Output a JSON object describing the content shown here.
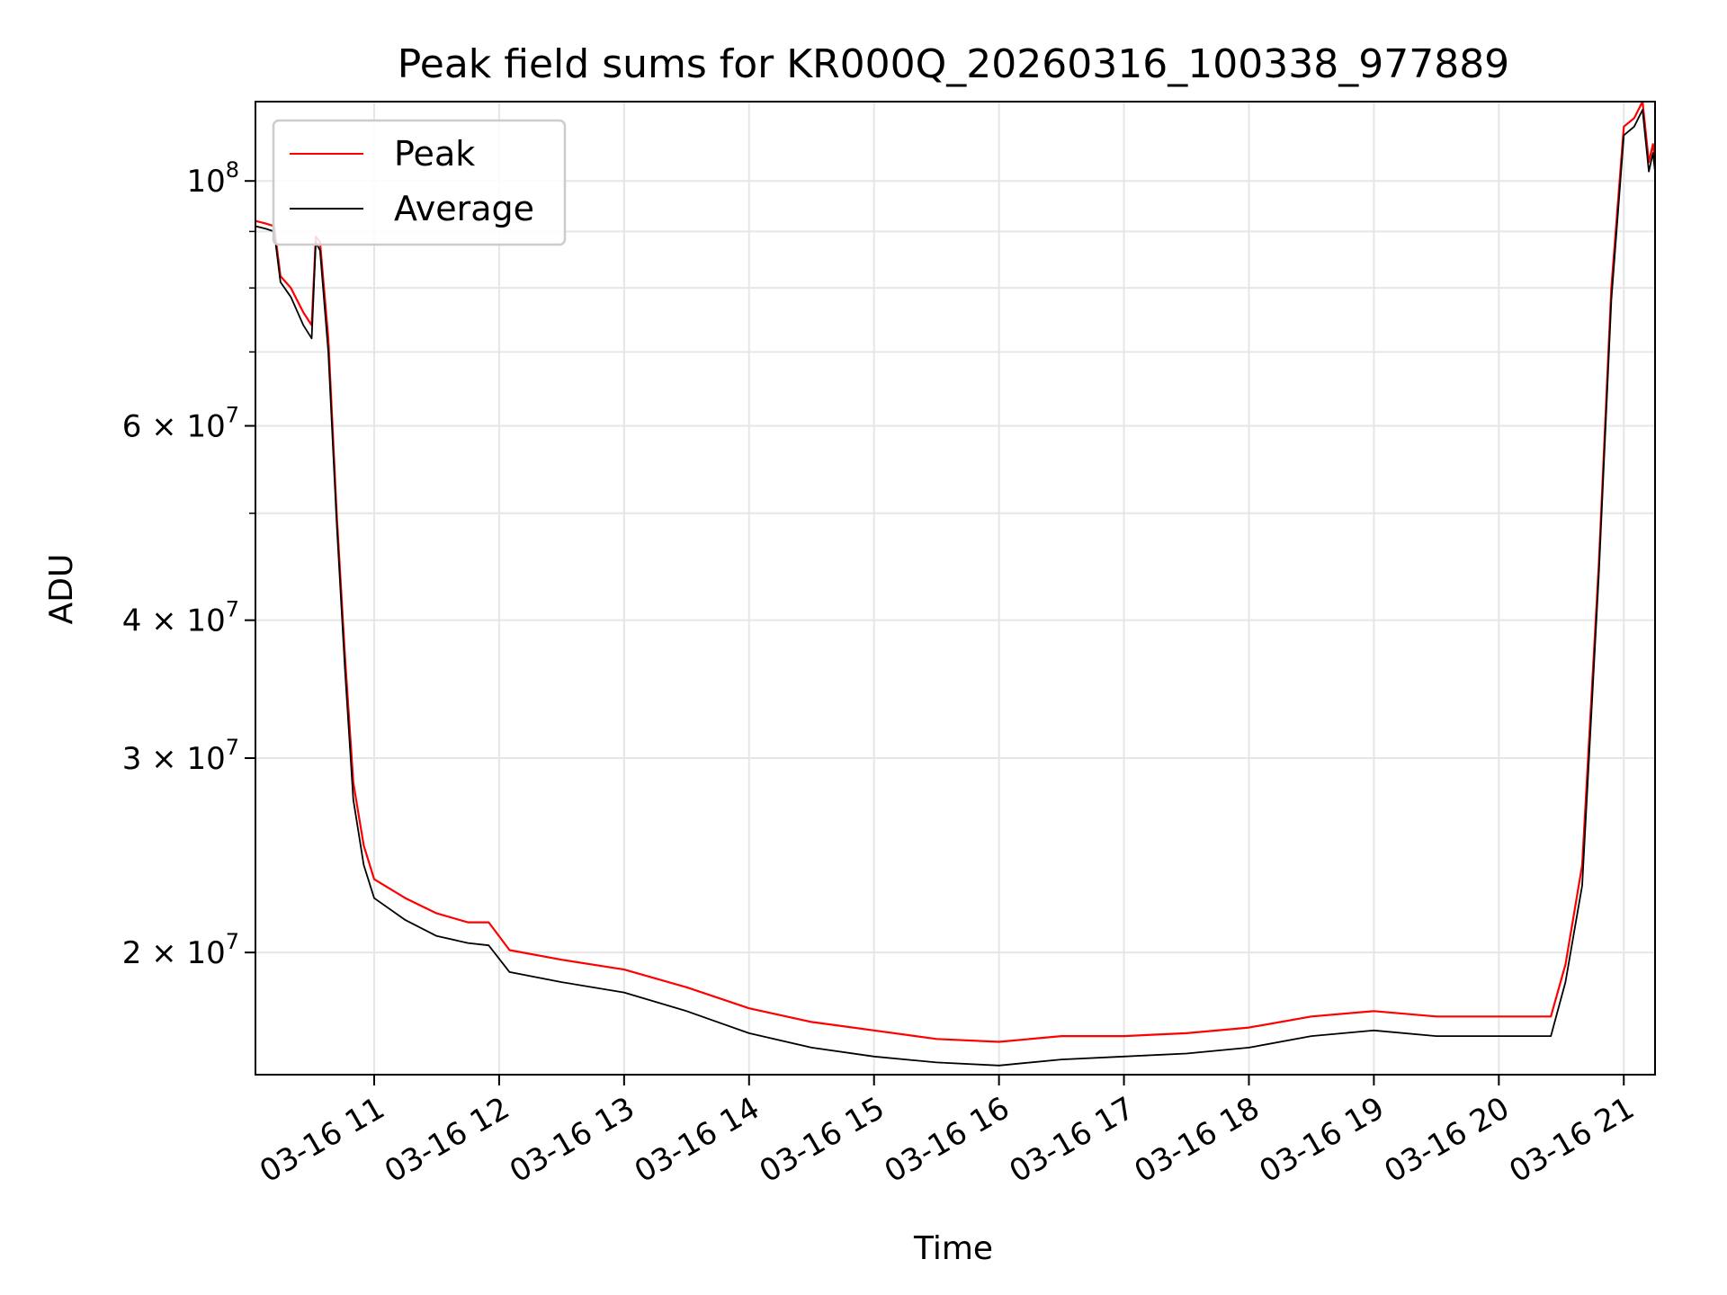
{
  "chart_data": {
    "type": "line",
    "title": "Peak field sums for KR000Q_20260316_100338_977889",
    "xlabel": "Time",
    "ylabel": "ADU",
    "yscale": "log",
    "xlim": [
      "2026-03-16 10:03",
      "2026-03-16 21:15"
    ],
    "ylim": [
      15500000,
      118000000
    ],
    "grid": true,
    "legend": "top-left",
    "x_ticks": [
      "03-16 11",
      "03-16 12",
      "03-16 13",
      "03-16 14",
      "03-16 15",
      "03-16 16",
      "03-16 17",
      "03-16 18",
      "03-16 19",
      "03-16 20",
      "03-16 21"
    ],
    "y_ticks": [
      {
        "value": 20000000,
        "mantissa": "2",
        "exponent": "7"
      },
      {
        "value": 30000000,
        "mantissa": "3",
        "exponent": "7"
      },
      {
        "value": 40000000,
        "mantissa": "4",
        "exponent": "7"
      },
      {
        "value": 60000000,
        "mantissa": "6",
        "exponent": "7"
      },
      {
        "value": 100000000,
        "mantissa": "",
        "exponent": "8"
      }
    ],
    "y_minor_ticks": [
      50000000,
      70000000,
      80000000,
      90000000
    ],
    "series": [
      {
        "name": "Peak",
        "color": "#ff0000",
        "points": [
          [
            "2026-03-16 10:03",
            92000000
          ],
          [
            "2026-03-16 10:08",
            91500000
          ],
          [
            "2026-03-16 10:12",
            91000000
          ],
          [
            "2026-03-16 10:15",
            82000000
          ],
          [
            "2026-03-16 10:20",
            80000000
          ],
          [
            "2026-03-16 10:26",
            76000000
          ],
          [
            "2026-03-16 10:30",
            74000000
          ],
          [
            "2026-03-16 10:32",
            89000000
          ],
          [
            "2026-03-16 10:34",
            88000000
          ],
          [
            "2026-03-16 10:38",
            72000000
          ],
          [
            "2026-03-16 10:42",
            50000000
          ],
          [
            "2026-03-16 10:46",
            37000000
          ],
          [
            "2026-03-16 10:50",
            28500000
          ],
          [
            "2026-03-16 10:55",
            25000000
          ],
          [
            "2026-03-16 11:00",
            23300000
          ],
          [
            "2026-03-16 11:15",
            22400000
          ],
          [
            "2026-03-16 11:30",
            21700000
          ],
          [
            "2026-03-16 11:45",
            21300000
          ],
          [
            "2026-03-16 11:55",
            21300000
          ],
          [
            "2026-03-16 12:05",
            20100000
          ],
          [
            "2026-03-16 12:30",
            19700000
          ],
          [
            "2026-03-16 13:00",
            19300000
          ],
          [
            "2026-03-16 13:30",
            18600000
          ],
          [
            "2026-03-16 14:00",
            17800000
          ],
          [
            "2026-03-16 14:30",
            17300000
          ],
          [
            "2026-03-16 15:00",
            17000000
          ],
          [
            "2026-03-16 15:30",
            16700000
          ],
          [
            "2026-03-16 16:00",
            16600000
          ],
          [
            "2026-03-16 16:30",
            16800000
          ],
          [
            "2026-03-16 17:00",
            16800000
          ],
          [
            "2026-03-16 17:30",
            16900000
          ],
          [
            "2026-03-16 18:00",
            17100000
          ],
          [
            "2026-03-16 18:30",
            17500000
          ],
          [
            "2026-03-16 19:00",
            17700000
          ],
          [
            "2026-03-16 19:30",
            17500000
          ],
          [
            "2026-03-16 20:00",
            17500000
          ],
          [
            "2026-03-16 20:25",
            17500000
          ],
          [
            "2026-03-16 20:32",
            19500000
          ],
          [
            "2026-03-16 20:40",
            24000000
          ],
          [
            "2026-03-16 20:48",
            45000000
          ],
          [
            "2026-03-16 20:54",
            80000000
          ],
          [
            "2026-03-16 21:00",
            112000000
          ],
          [
            "2026-03-16 21:05",
            114000000
          ],
          [
            "2026-03-16 21:09",
            118000000
          ],
          [
            "2026-03-16 21:12",
            104000000
          ],
          [
            "2026-03-16 21:14",
            108000000
          ],
          [
            "2026-03-16 21:15",
            104000000
          ]
        ]
      },
      {
        "name": "Average",
        "color": "#000000",
        "points": [
          [
            "2026-03-16 10:03",
            91000000
          ],
          [
            "2026-03-16 10:08",
            90500000
          ],
          [
            "2026-03-16 10:12",
            90000000
          ],
          [
            "2026-03-16 10:15",
            81000000
          ],
          [
            "2026-03-16 10:20",
            78500000
          ],
          [
            "2026-03-16 10:26",
            74000000
          ],
          [
            "2026-03-16 10:30",
            72000000
          ],
          [
            "2026-03-16 10:32",
            88000000
          ],
          [
            "2026-03-16 10:34",
            86500000
          ],
          [
            "2026-03-16 10:38",
            70000000
          ],
          [
            "2026-03-16 10:42",
            49000000
          ],
          [
            "2026-03-16 10:46",
            36000000
          ],
          [
            "2026-03-16 10:50",
            27500000
          ],
          [
            "2026-03-16 10:55",
            24000000
          ],
          [
            "2026-03-16 11:00",
            22400000
          ],
          [
            "2026-03-16 11:15",
            21400000
          ],
          [
            "2026-03-16 11:30",
            20700000
          ],
          [
            "2026-03-16 11:45",
            20400000
          ],
          [
            "2026-03-16 11:55",
            20300000
          ],
          [
            "2026-03-16 12:05",
            19200000
          ],
          [
            "2026-03-16 12:30",
            18800000
          ],
          [
            "2026-03-16 13:00",
            18400000
          ],
          [
            "2026-03-16 13:30",
            17700000
          ],
          [
            "2026-03-16 14:00",
            16900000
          ],
          [
            "2026-03-16 14:30",
            16400000
          ],
          [
            "2026-03-16 15:00",
            16100000
          ],
          [
            "2026-03-16 15:30",
            15900000
          ],
          [
            "2026-03-16 16:00",
            15800000
          ],
          [
            "2026-03-16 16:30",
            16000000
          ],
          [
            "2026-03-16 17:00",
            16100000
          ],
          [
            "2026-03-16 17:30",
            16200000
          ],
          [
            "2026-03-16 18:00",
            16400000
          ],
          [
            "2026-03-16 18:30",
            16800000
          ],
          [
            "2026-03-16 19:00",
            17000000
          ],
          [
            "2026-03-16 19:30",
            16800000
          ],
          [
            "2026-03-16 20:00",
            16800000
          ],
          [
            "2026-03-16 20:25",
            16800000
          ],
          [
            "2026-03-16 20:32",
            18800000
          ],
          [
            "2026-03-16 20:40",
            23000000
          ],
          [
            "2026-03-16 20:48",
            44000000
          ],
          [
            "2026-03-16 20:54",
            78000000
          ],
          [
            "2026-03-16 21:00",
            110000000
          ],
          [
            "2026-03-16 21:05",
            112000000
          ],
          [
            "2026-03-16 21:09",
            116000000
          ],
          [
            "2026-03-16 21:12",
            102000000
          ],
          [
            "2026-03-16 21:14",
            106000000
          ],
          [
            "2026-03-16 21:15",
            102000000
          ]
        ]
      }
    ]
  }
}
